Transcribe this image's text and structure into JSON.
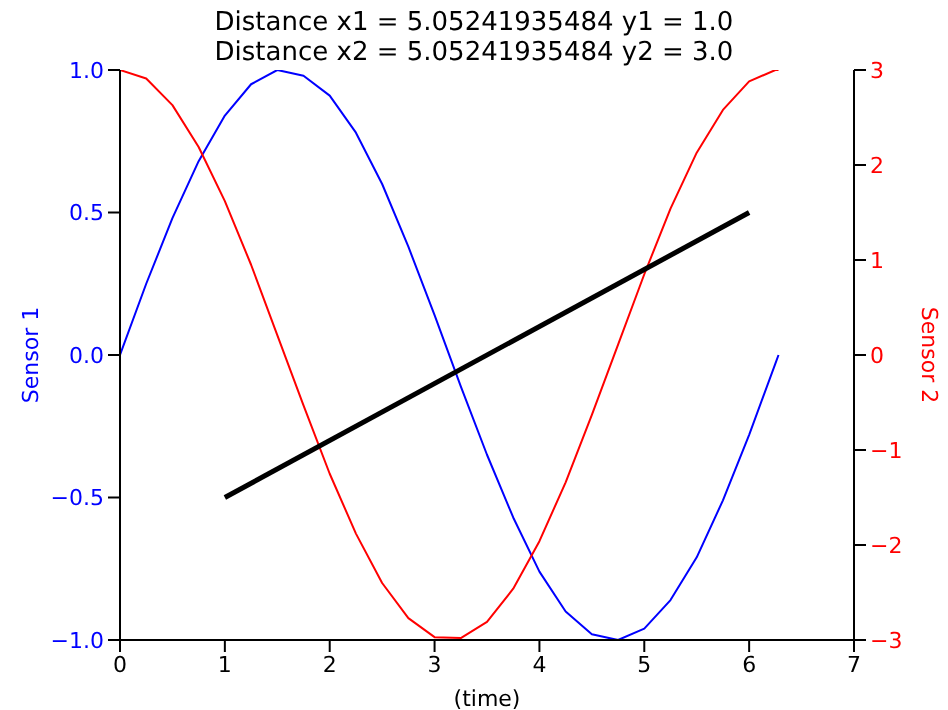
{
  "chart_data": {
    "type": "line",
    "title": "Distance x1 = 5.05241935484 y1 = 1.0",
    "subtitle": "Distance x2 = 5.05241935484 y2 = 3.0",
    "xlabel": "(time)",
    "ylabel": "Sensor 1",
    "y2label": "Sensor 2",
    "x": [
      0,
      0.25,
      0.5,
      0.75,
      1,
      1.25,
      1.5,
      1.75,
      2,
      2.25,
      2.5,
      2.75,
      3,
      3.25,
      3.5,
      3.75,
      4,
      4.25,
      4.5,
      4.75,
      5,
      5.25,
      5.5,
      5.75,
      6,
      6.25,
      6.28
    ],
    "series": [
      {
        "color": "#0000ff",
        "values": [
          0,
          0.25,
          0.48,
          0.68,
          0.84,
          0.95,
          1.0,
          0.98,
          0.91,
          0.78,
          0.6,
          0.38,
          0.14,
          -0.11,
          -0.35,
          -0.57,
          -0.76,
          -0.9,
          -0.98,
          -1.0,
          -0.96,
          -0.86,
          -0.71,
          -0.51,
          -0.28,
          -0.03,
          0
        ]
      },
      {
        "color": "#ff0000",
        "axis": "y2",
        "values": [
          3,
          2.91,
          2.63,
          2.19,
          1.62,
          0.95,
          0.21,
          -0.53,
          -1.25,
          -1.88,
          -2.4,
          -2.77,
          -2.97,
          -2.98,
          -2.81,
          -2.46,
          -1.96,
          -1.34,
          -0.63,
          0.11,
          0.85,
          1.54,
          2.13,
          2.58,
          2.88,
          3,
          3
        ]
      },
      {
        "color": "#000000",
        "x": [
          1,
          6
        ],
        "values": [
          -0.5,
          0.5
        ]
      }
    ],
    "xlim": [
      0,
      7
    ],
    "xticks": [
      0,
      1,
      2,
      3,
      4,
      5,
      6,
      7
    ],
    "ylim": [
      -1,
      1
    ],
    "yticks": [
      {
        "value": -1,
        "label": "−1.0"
      },
      {
        "value": -0.5,
        "label": "−0.5"
      },
      {
        "value": 0,
        "label": "0.0"
      },
      {
        "value": 0.5,
        "label": "0.5"
      },
      {
        "value": 1,
        "label": "1.0"
      }
    ],
    "y2lim": [
      -3,
      3
    ],
    "y2ticks": [
      {
        "value": -3,
        "label": "−3"
      },
      {
        "value": -2,
        "label": "−2"
      },
      {
        "value": -1,
        "label": "−1"
      },
      0,
      1,
      2,
      3
    ],
    "grid": false,
    "legend": false,
    "marker": "none",
    "line_style": "solid"
  }
}
